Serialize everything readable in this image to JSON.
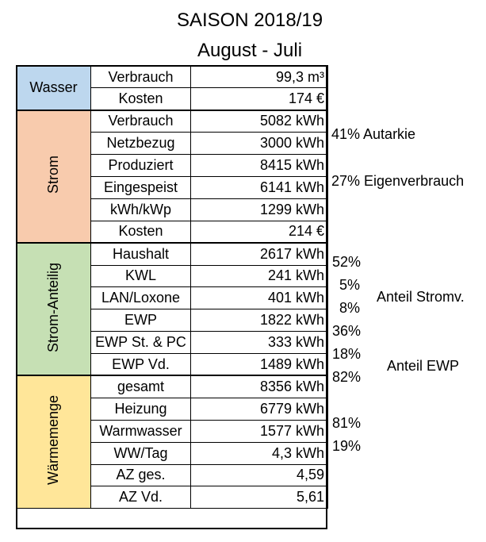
{
  "title": "SAISON 2018/19",
  "subtitle": "August - Juli",
  "groups": {
    "wasser": {
      "name": "Wasser",
      "color": "#bdd7ee",
      "rows": [
        {
          "label": "Verbrauch",
          "value": "99,3 m³"
        },
        {
          "label": "Kosten",
          "value": "174 €"
        }
      ]
    },
    "strom": {
      "name": "Strom",
      "color": "#f8cbad",
      "rows": [
        {
          "label": "Verbrauch",
          "value": "5082 kWh"
        },
        {
          "label": "Netzbezug",
          "value": "3000 kWh"
        },
        {
          "label": "Produziert",
          "value": "8415 kWh"
        },
        {
          "label": "Eingespeist",
          "value": "6141 kWh"
        },
        {
          "label": "kWh/kWp",
          "value": "1299 kWh"
        },
        {
          "label": "Kosten",
          "value": "214 €"
        }
      ]
    },
    "strom_anteilig": {
      "name": "Strom-Anteilig",
      "color": "#c6e0b4",
      "rows": [
        {
          "label": "Haushalt",
          "value": "2617 kWh",
          "pct": "52%"
        },
        {
          "label": "KWL",
          "value": "241 kWh",
          "pct": "5%"
        },
        {
          "label": "LAN/Loxone",
          "value": "401 kWh",
          "pct": "8%"
        },
        {
          "label": "EWP",
          "value": "1822 kWh",
          "pct": "36%"
        },
        {
          "label": "EWP St. & PC",
          "value": "333 kWh",
          "pct": "18%"
        },
        {
          "label": "EWP Vd.",
          "value": "1489 kWh",
          "pct": "82%"
        }
      ]
    },
    "waermemenge": {
      "name": "Wärmemenge",
      "color": "#ffe699",
      "rows": [
        {
          "label": "gesamt",
          "value": "8356 kWh"
        },
        {
          "label": "Heizung",
          "value": "6779 kWh",
          "pct": "81%"
        },
        {
          "label": "Warmwasser",
          "value": "1577 kWh",
          "pct": "19%"
        },
        {
          "label": "WW/Tag",
          "value": "4,3 kWh"
        },
        {
          "label": "AZ ges.",
          "value": "4,59"
        },
        {
          "label": "AZ Vd.",
          "value": "5,61"
        }
      ]
    }
  },
  "notes": {
    "autarkie": "41%  Autarkie",
    "eigenverbrauch": "27%  Eigenverbrauch",
    "anteil_stromv": "Anteil Stromv.",
    "anteil_ewp": "Anteil EWP"
  }
}
